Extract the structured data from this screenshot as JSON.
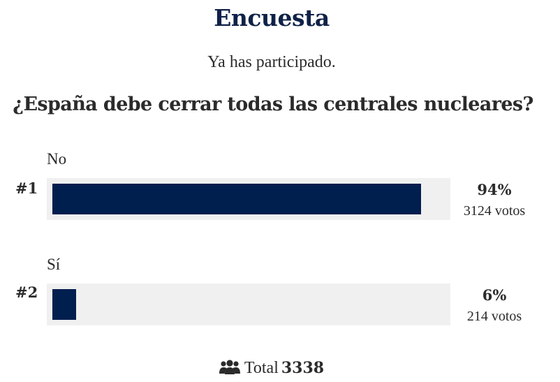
{
  "poll": {
    "title": "Encuesta",
    "status": "Ya has participado.",
    "question": "¿España debe cerrar todas las centrales nucleares?",
    "options": [
      {
        "rank": "#1",
        "label": "No",
        "percent_label": "94%",
        "percent": 94,
        "votes_label": "3124 votos"
      },
      {
        "rank": "#2",
        "label": "Sí",
        "percent_label": "6%",
        "percent": 6,
        "votes_label": "214 votos"
      }
    ],
    "total_label": "Total",
    "total_value": "3338",
    "icons": {
      "total": "users-icon"
    },
    "colors": {
      "bar_fill": "#001e4e",
      "bar_track": "#f0f0f0",
      "title": "#0f2148"
    }
  }
}
